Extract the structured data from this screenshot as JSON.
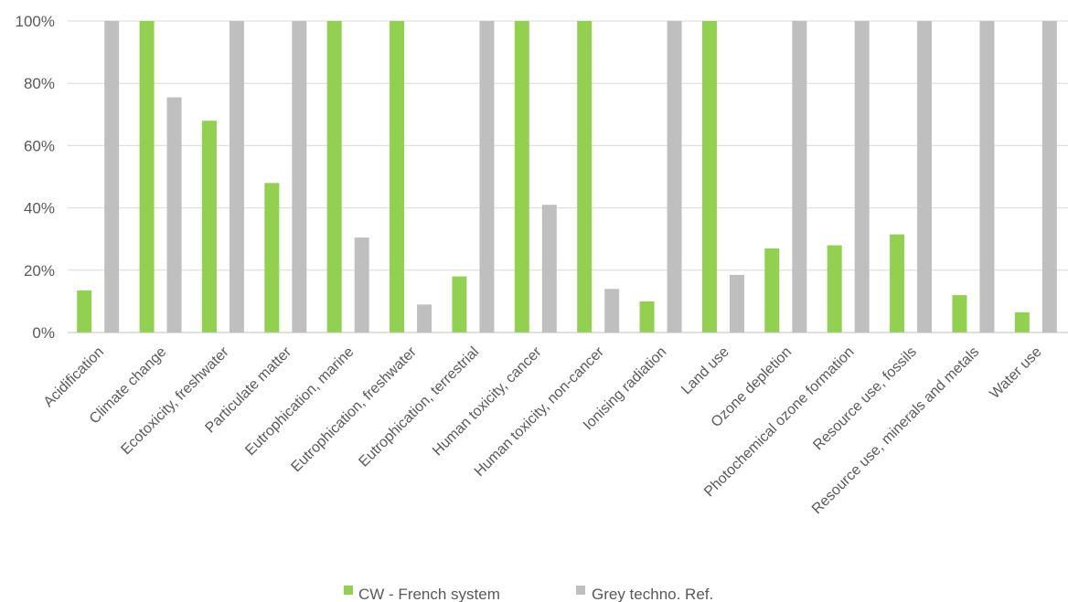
{
  "chart_data": {
    "type": "bar",
    "categories": [
      "Acidification",
      "Climate change",
      "Ecotoxicity, freshwater",
      "Particulate matter",
      "Eutrophication, marine",
      "Eutrophication, freshwater",
      "Eutrophication, terrestrial",
      "Human toxicity, cancer",
      "Human toxicity, non-cancer",
      "Ionising radiation",
      "Land use",
      "Ozone depletion",
      "Photochemical ozone formation",
      "Resource use, fossils",
      "Resource use, minerals and metals",
      "Water use"
    ],
    "series": [
      {
        "name": "CW - French system",
        "color": "#92d050",
        "values": [
          13.5,
          100,
          68,
          48,
          100,
          100,
          18,
          100,
          100,
          10,
          100,
          27,
          28,
          31.5,
          12,
          6.5
        ]
      },
      {
        "name": "Grey techno. Ref.",
        "color": "#bfbfbf",
        "values": [
          100,
          75.5,
          100,
          100,
          30.5,
          9,
          100,
          41,
          14,
          100,
          18.5,
          100,
          100,
          100,
          100,
          100
        ]
      }
    ],
    "y_ticks": [
      "0%",
      "20%",
      "40%",
      "60%",
      "80%",
      "100%"
    ],
    "ylim": [
      0,
      100
    ],
    "grid": true,
    "legend_position": "bottom"
  }
}
